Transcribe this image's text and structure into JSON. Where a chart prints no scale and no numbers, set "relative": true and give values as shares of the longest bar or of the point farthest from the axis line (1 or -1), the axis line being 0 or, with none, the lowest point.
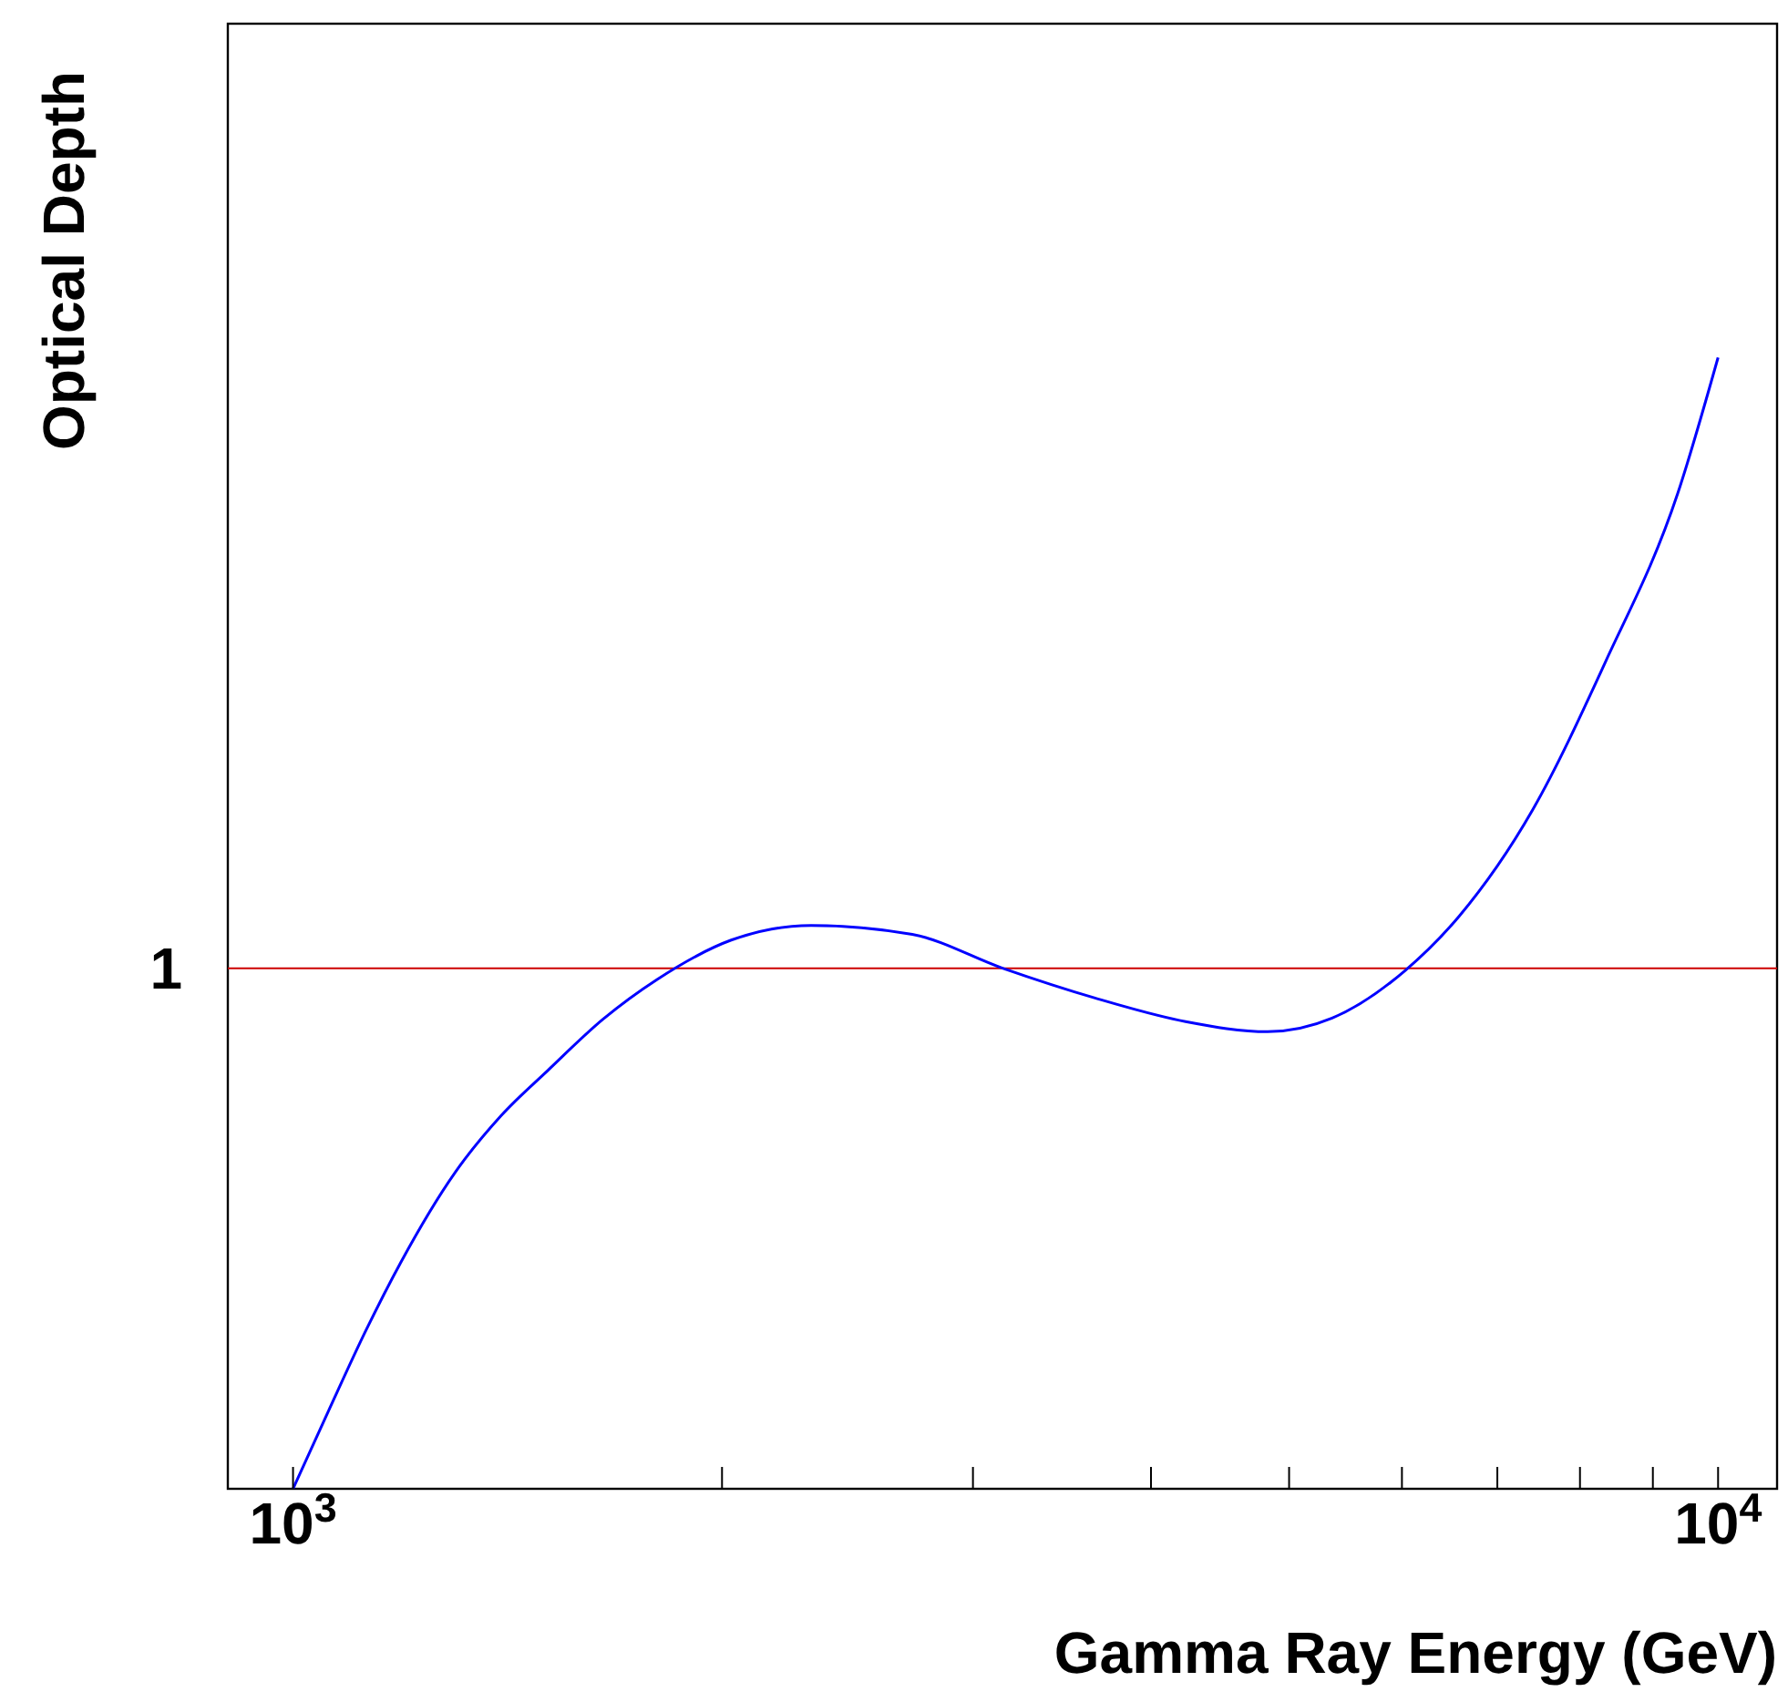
{
  "chart_data": {
    "type": "line",
    "xlabel": "Gamma Ray Energy (GeV)",
    "ylabel": "Optical Depth",
    "relative": true,
    "log": "x",
    "xlim": [
      900,
      11000
    ],
    "xticks": [
      {
        "value": 1000,
        "label": "10$^{3}$"
      },
      {
        "value": 2000,
        "label": null
      },
      {
        "value": 3000,
        "label": null
      },
      {
        "value": 4000,
        "label": null
      },
      {
        "value": 5000,
        "label": null
      },
      {
        "value": 6000,
        "label": null
      },
      {
        "value": 7000,
        "label": null
      },
      {
        "value": 8000,
        "label": null
      },
      {
        "value": 9000,
        "label": null
      },
      {
        "value": 10000,
        "label": "10$^{4}$"
      }
    ],
    "x": [
      1000,
      1060,
      1125,
      1190,
      1300,
      1400,
      1510,
      1650,
      1800,
      2030,
      2310,
      2720,
      3150,
      3650,
      4230,
      4830,
      5360,
      6030,
      6580,
      7410,
      8330,
      9370,
      10000
    ],
    "series": [
      {
        "color": "#0000ff",
        "values": [
          0,
          0.07,
          0.14,
          0.2,
          0.28,
          0.33,
          0.37,
          0.415,
          0.45,
          0.485,
          0.498,
          0.49,
          0.46,
          0.434,
          0.413,
          0.404,
          0.416,
          0.458,
          0.506,
          0.6,
          0.73,
          0.88,
          1
        ]
      }
    ],
    "ref_lines": [
      {
        "axis": "y",
        "value": 0.46,
        "color": "#cc0000"
      }
    ],
    "annotations": [
      "1"
    ],
    "marker": "none",
    "line_style": "solid"
  }
}
